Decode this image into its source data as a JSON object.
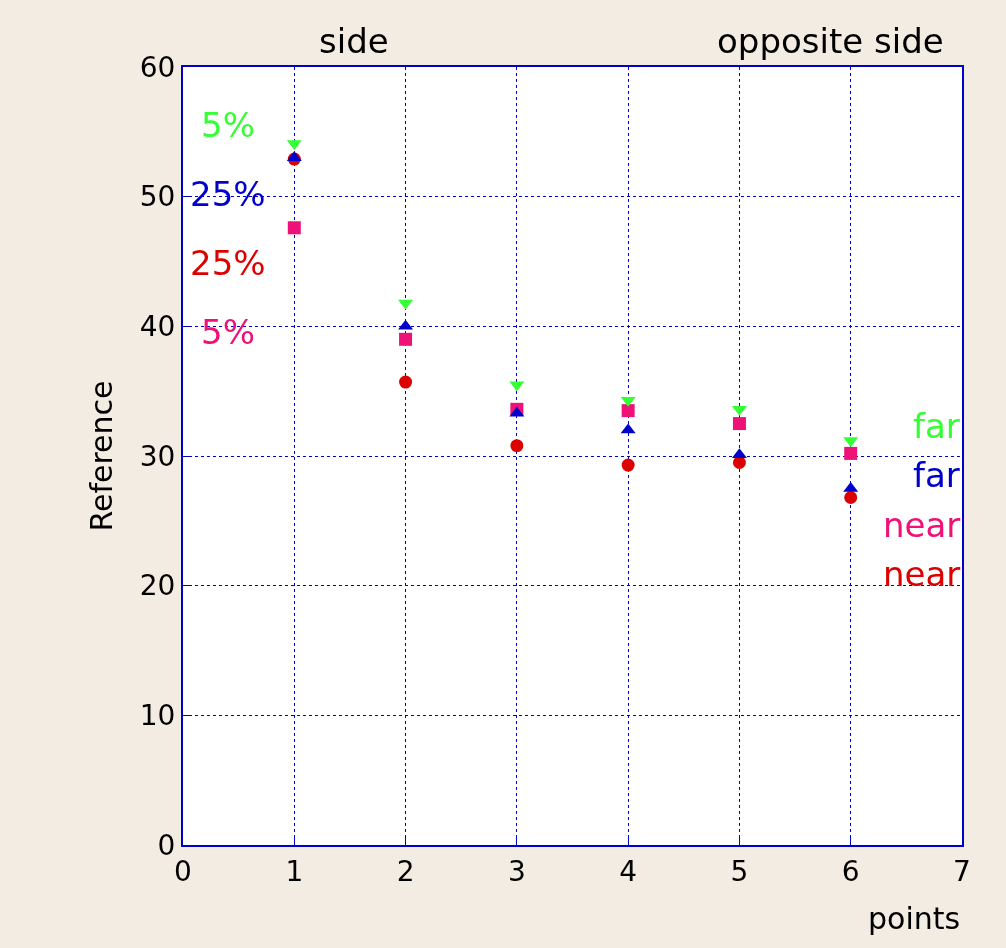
{
  "chart_data": {
    "type": "scatter",
    "xlabel": "points",
    "ylabel": "Reference",
    "x": [
      1,
      2,
      3,
      4,
      5,
      6
    ],
    "series": [
      {
        "name": "5%",
        "color": "#33ff33",
        "marker": "triangle-down",
        "values": [
          54.1,
          41.8,
          35.5,
          34.3,
          33.6,
          31.2
        ]
      },
      {
        "name": "25%",
        "color": "#0000cc",
        "marker": "triangle",
        "values": [
          53.0,
          40.0,
          33.3,
          32.0,
          30.1,
          27.5
        ]
      },
      {
        "name": "5%",
        "color": "#ee1177",
        "marker": "square",
        "values": [
          47.6,
          39.0,
          33.6,
          33.5,
          32.5,
          30.2
        ]
      },
      {
        "name": "25%",
        "color": "#dd0000",
        "marker": "circle",
        "values": [
          52.9,
          35.7,
          30.8,
          29.3,
          29.5,
          26.8
        ]
      }
    ],
    "annotations": [
      "side",
      "opposite side",
      "far",
      "far",
      "near",
      "near"
    ],
    "xlim": [
      0,
      7
    ],
    "xticks": [
      0,
      1,
      2,
      3,
      4,
      5,
      6,
      7
    ],
    "ylim": [
      0,
      60
    ],
    "yticks": [
      0,
      10,
      20,
      30,
      40,
      50,
      60
    ],
    "grid": true,
    "legend": false
  }
}
